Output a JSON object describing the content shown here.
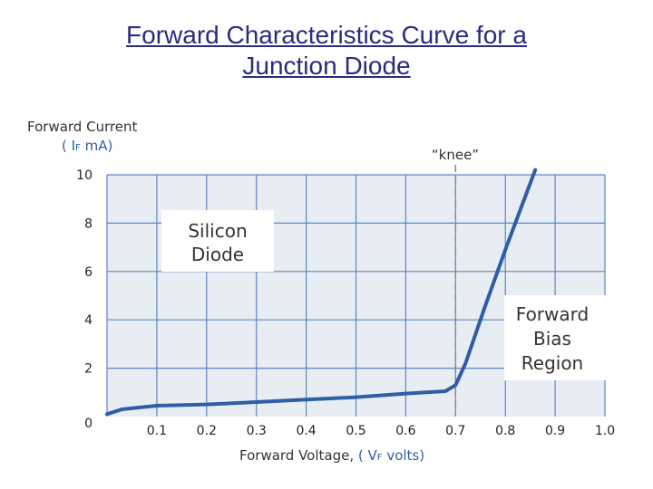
{
  "title": {
    "line1": "Forward Characteristics Curve for a",
    "line2": "Junction Diode"
  },
  "chart_data": {
    "type": "line",
    "ylabel": "Forward Current",
    "ylabel_unit": "( I",
    "ylabel_sub": "F",
    "ylabel_unit_rest": " mA)",
    "xlabel": "Forward Voltage, ",
    "xlabel_unit": "( V",
    "xlabel_sub": "F",
    "xlabel_unit_rest": " volts)",
    "xlim": [
      0,
      1.0
    ],
    "ylim": [
      0,
      10
    ],
    "xticks": [
      {
        "value": 0.1,
        "label": "0.1"
      },
      {
        "value": 0.2,
        "label": "0.2"
      },
      {
        "value": 0.3,
        "label": "0.3"
      },
      {
        "value": 0.4,
        "label": "0.4"
      },
      {
        "value": 0.5,
        "label": "0.5"
      },
      {
        "value": 0.6,
        "label": "0.6"
      },
      {
        "value": 0.7,
        "label": "0.7"
      },
      {
        "value": 0.8,
        "label": "0.8"
      },
      {
        "value": 0.9,
        "label": "0.9"
      },
      {
        "value": 1.0,
        "label": "1.0"
      }
    ],
    "yticks": [
      {
        "value": 0,
        "label": "0"
      },
      {
        "value": 2,
        "label": "2"
      },
      {
        "value": 4,
        "label": "4"
      },
      {
        "value": 6,
        "label": "6"
      },
      {
        "value": 8,
        "label": "8"
      },
      {
        "value": 10,
        "label": "10"
      }
    ],
    "grid": true,
    "series": [
      {
        "x": [
          0.0,
          0.03,
          0.1,
          0.2,
          0.3,
          0.4,
          0.5,
          0.6,
          0.68,
          0.7,
          0.72,
          0.76,
          0.8,
          0.86
        ],
        "y": [
          0.1,
          0.3,
          0.45,
          0.5,
          0.6,
          0.7,
          0.8,
          0.95,
          1.05,
          1.3,
          2.2,
          4.6,
          6.9,
          10.2
        ],
        "color": "#2f5da6"
      }
    ],
    "knee_x": 0.7,
    "annotations": {
      "knee": "“knee”",
      "silicon_line1": "Silicon",
      "silicon_line2": "Diode",
      "region_line1": "Forward",
      "region_line2": "Bias",
      "region_line3": "Region"
    },
    "colors": {
      "plot_bg": "#e8edf3",
      "grid": "#5b87c5",
      "curve": "#2f5da6",
      "knee_line": "#888888"
    }
  }
}
